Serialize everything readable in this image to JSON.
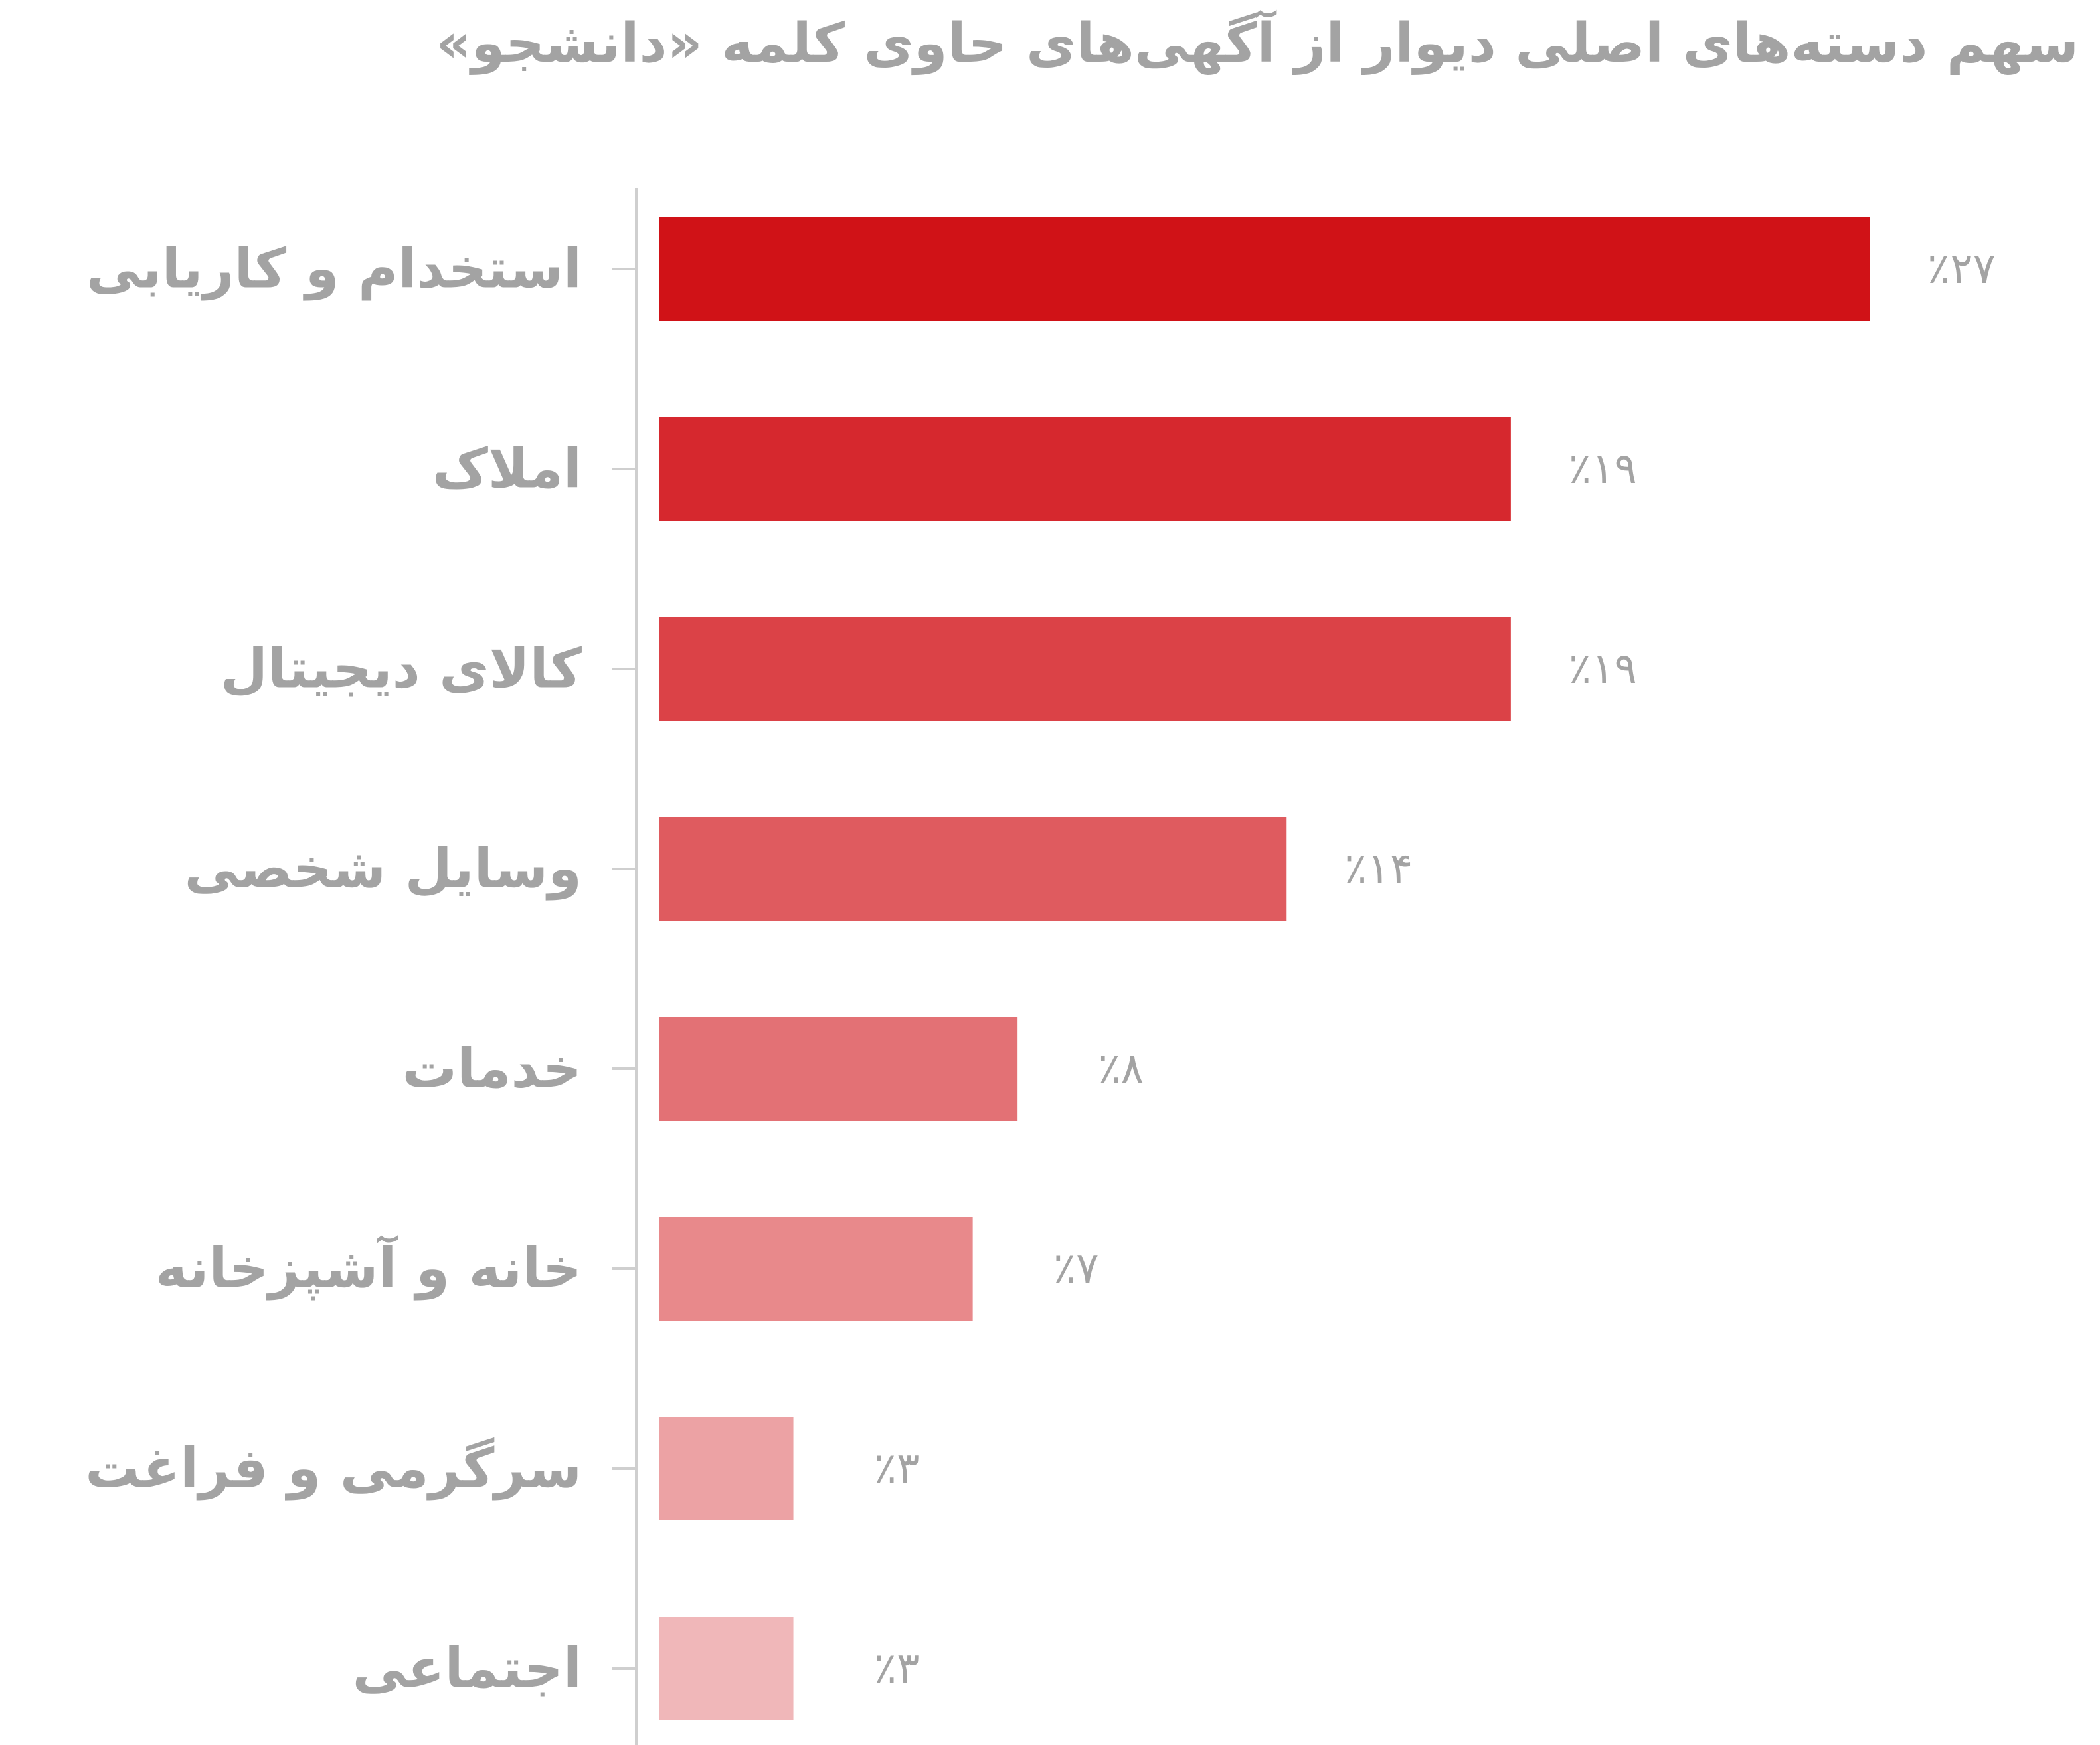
{
  "chart_data": {
    "type": "bar",
    "orientation": "horizontal",
    "title": "سهم دسته‌های اصلی دیوار از آگهی‌های حاوی کلمه «دانشجو»",
    "categories": [
      "استخدام و کاریابی",
      "املاک",
      "کالای دیجیتال",
      "وسایل شخصی",
      "خدمات",
      "خانه و آشپزخانه",
      "سرگرمی و فراغت",
      "اجتماعی"
    ],
    "values": [
      27,
      19,
      19,
      14,
      8,
      7,
      3,
      3
    ],
    "value_labels": [
      "٪۲۷",
      "٪۱۹",
      "٪۱۹",
      "٪۱۴",
      "٪۸",
      "٪۷",
      "٪۳",
      "٪۳"
    ],
    "colors": [
      "#d01217",
      "#d6282e",
      "#db4247",
      "#df5b5f",
      "#e37175",
      "#e8898b",
      "#eca2a4",
      "#f0b7b9"
    ],
    "xlim": [
      0,
      27
    ],
    "xlabel": "",
    "ylabel": "",
    "grid": false,
    "legend": "none"
  }
}
